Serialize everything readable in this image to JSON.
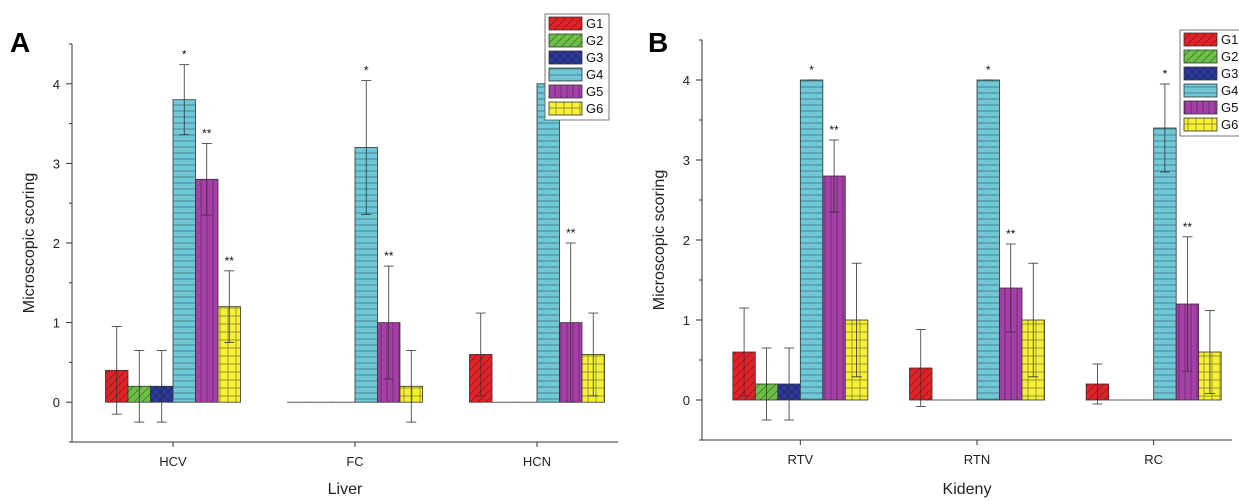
{
  "chart_data": [
    {
      "type": "bar",
      "panel_label": "A",
      "xlabel": "Liver",
      "ylabel": "Microscopic scoring",
      "categories": [
        "HCV",
        "FC",
        "HCN"
      ],
      "ylim": [
        -0.5,
        4.5
      ],
      "yticks": [
        0,
        1,
        2,
        3,
        4
      ],
      "legend_position": "top-right",
      "series": [
        {
          "name": "G1",
          "values": [
            0.4,
            0.0,
            0.6
          ],
          "errors": [
            0.55,
            0.0,
            0.52
          ],
          "sig": [
            "",
            "",
            ""
          ]
        },
        {
          "name": "G2",
          "values": [
            0.2,
            0.0,
            0.0
          ],
          "errors": [
            0.45,
            0.0,
            0.0
          ],
          "sig": [
            "",
            "",
            ""
          ]
        },
        {
          "name": "G3",
          "values": [
            0.2,
            0.0,
            0.0
          ],
          "errors": [
            0.45,
            0.0,
            0.0
          ],
          "sig": [
            "",
            "",
            ""
          ]
        },
        {
          "name": "G4",
          "values": [
            3.8,
            3.2,
            4.0
          ],
          "errors": [
            0.44,
            0.84,
            0.0
          ],
          "sig": [
            "*",
            "*",
            "*"
          ]
        },
        {
          "name": "G5",
          "values": [
            2.8,
            1.0,
            1.0
          ],
          "errors": [
            0.45,
            0.71,
            1.0
          ],
          "sig": [
            "**",
            "**",
            "**"
          ]
        },
        {
          "name": "G6",
          "values": [
            1.2,
            0.2,
            0.6
          ],
          "errors": [
            0.45,
            0.45,
            0.52
          ],
          "sig": [
            "**",
            "",
            ""
          ]
        }
      ]
    },
    {
      "type": "bar",
      "panel_label": "B",
      "xlabel": "Kideny",
      "ylabel": "Microscopic scoring",
      "categories": [
        "RTV",
        "RTN",
        "RC"
      ],
      "ylim": [
        -0.5,
        4.5
      ],
      "yticks": [
        0,
        1,
        2,
        3,
        4
      ],
      "legend_position": "top-right",
      "series": [
        {
          "name": "G1",
          "values": [
            0.6,
            0.4,
            0.2
          ],
          "errors": [
            0.55,
            0.48,
            0.25
          ],
          "sig": [
            "",
            "",
            ""
          ]
        },
        {
          "name": "G2",
          "values": [
            0.2,
            0.0,
            0.0
          ],
          "errors": [
            0.45,
            0.0,
            0.0
          ],
          "sig": [
            "",
            "",
            ""
          ]
        },
        {
          "name": "G3",
          "values": [
            0.2,
            0.0,
            0.0
          ],
          "errors": [
            0.45,
            0.0,
            0.0
          ],
          "sig": [
            "",
            "",
            ""
          ]
        },
        {
          "name": "G4",
          "values": [
            4.0,
            4.0,
            3.4
          ],
          "errors": [
            0.0,
            0.0,
            0.55
          ],
          "sig": [
            "*",
            "*",
            "*"
          ]
        },
        {
          "name": "G5",
          "values": [
            2.8,
            1.4,
            1.2
          ],
          "errors": [
            0.45,
            0.55,
            0.84
          ],
          "sig": [
            "**",
            "**",
            "**"
          ]
        },
        {
          "name": "G6",
          "values": [
            1.0,
            1.0,
            0.6
          ],
          "errors": [
            0.71,
            0.71,
            0.52
          ],
          "sig": [
            "",
            "",
            ""
          ]
        }
      ]
    }
  ],
  "series_colors": [
    "#e32027",
    "#6cc048",
    "#2a3aa0",
    "#6ec8d8",
    "#a640a8",
    "#f5ef36"
  ],
  "series_patterns": [
    "diag-right",
    "diag-right",
    "crosshatch",
    "horizontal",
    "vertical",
    "grid"
  ]
}
